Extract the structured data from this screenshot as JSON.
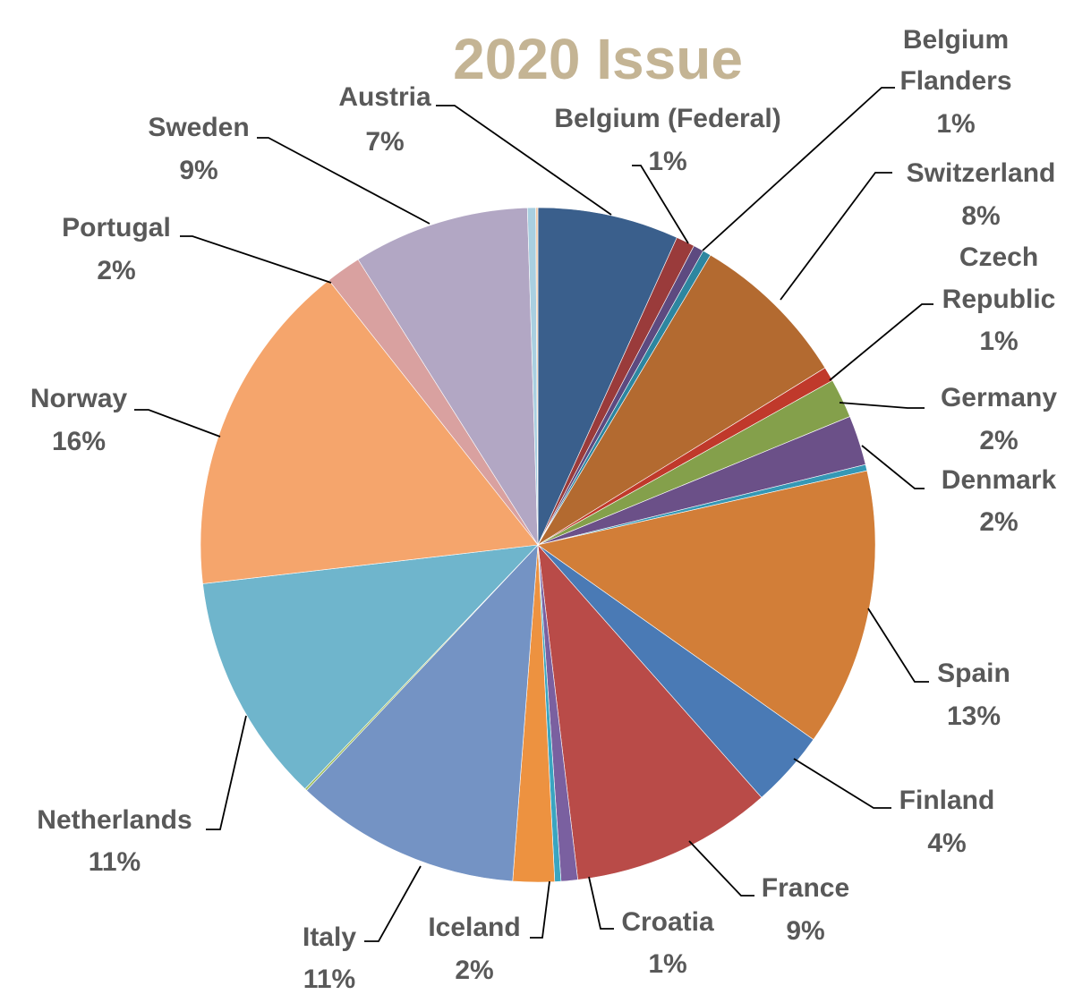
{
  "chart_data": {
    "type": "pie",
    "title": "2020 Issue",
    "slices": [
      {
        "name": "Austria",
        "pct_label": "7%",
        "share": 0.068,
        "color": "#3a5f8c"
      },
      {
        "name": "Belgium (Federal)",
        "pct_label": "1%",
        "share": 0.009,
        "color": "#9a3b3b"
      },
      {
        "name": "Belgium Flanders",
        "pct_label": "1%",
        "share": 0.005,
        "color": "#5d4a80"
      },
      {
        "name": "",
        "pct_label": "",
        "share": 0.004,
        "color": "#2d86a0"
      },
      {
        "name": "Switzerland",
        "pct_label": "8%",
        "share": 0.077,
        "color": "#b36a30"
      },
      {
        "name": "Czech Republic",
        "pct_label": "1%",
        "share": 0.007,
        "color": "#c0392b"
      },
      {
        "name": "Germany",
        "pct_label": "2%",
        "share": 0.019,
        "color": "#84a04b"
      },
      {
        "name": "Denmark",
        "pct_label": "2%",
        "share": 0.024,
        "color": "#6b5088"
      },
      {
        "name": "",
        "pct_label": "",
        "share": 0.003,
        "color": "#3598b5"
      },
      {
        "name": "Spain",
        "pct_label": "13%",
        "share": 0.134,
        "color": "#d27e38"
      },
      {
        "name": "Finland",
        "pct_label": "4%",
        "share": 0.037,
        "color": "#4a7ab5"
      },
      {
        "name": "France",
        "pct_label": "9%",
        "share": 0.097,
        "color": "#b94b48"
      },
      {
        "name": "Croatia",
        "pct_label": "1%",
        "share": 0.008,
        "color": "#7a60a0"
      },
      {
        "name": "",
        "pct_label": "",
        "share": 0.003,
        "color": "#3aa5c0"
      },
      {
        "name": "Iceland",
        "pct_label": "2%",
        "share": 0.02,
        "color": "#ed9240"
      },
      {
        "name": "Italy",
        "pct_label": "11%",
        "share": 0.109,
        "color": "#7493c4"
      },
      {
        "name": "",
        "pct_label": "",
        "share": 0.001,
        "color": "#9bbb59"
      },
      {
        "name": "Netherlands",
        "pct_label": "11%",
        "share": 0.111,
        "color": "#6fb5cc"
      },
      {
        "name": "Norway",
        "pct_label": "16%",
        "share": 0.163,
        "color": "#f5a56c"
      },
      {
        "name": "Portugal",
        "pct_label": "2%",
        "share": 0.017,
        "color": "#d9a1a0"
      },
      {
        "name": "Sweden",
        "pct_label": "9%",
        "share": 0.085,
        "color": "#b2a7c4"
      },
      {
        "name": "",
        "pct_label": "",
        "share": 0.004,
        "color": "#a9cfe0"
      },
      {
        "name": "",
        "pct_label": "",
        "share": 0.001,
        "color": "#f3c9a6"
      }
    ]
  }
}
